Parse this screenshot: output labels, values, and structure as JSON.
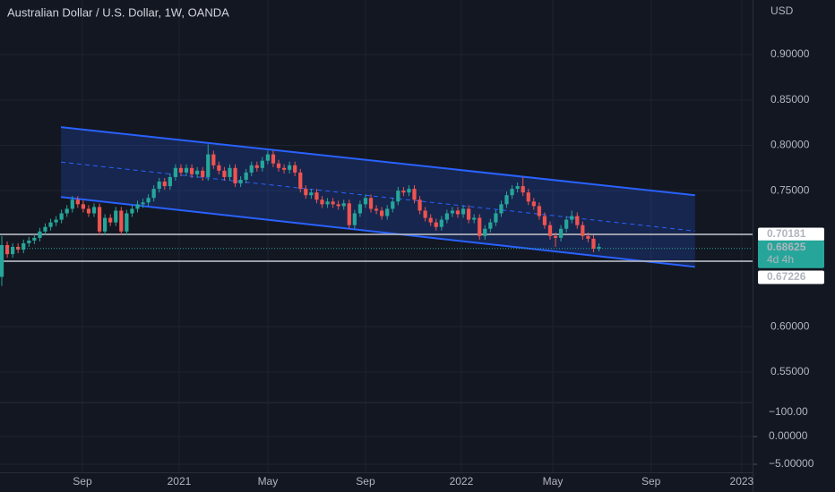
{
  "chart_data": {
    "type": "candlestick",
    "title": "Australian Dollar / U.S. Dollar, 1W, OANDA",
    "currency": "USD",
    "up_color": "#26a69a",
    "down_color": "#ef5350",
    "open": [
      0.655,
      0.69,
      0.68,
      0.688,
      0.685,
      0.692,
      0.695,
      0.698,
      0.705,
      0.71,
      0.715,
      0.718,
      0.725,
      0.73,
      0.74,
      0.735,
      0.73,
      0.725,
      0.732,
      0.705,
      0.72,
      0.715,
      0.728,
      0.705,
      0.725,
      0.73,
      0.735,
      0.737,
      0.742,
      0.752,
      0.76,
      0.755,
      0.765,
      0.775,
      0.77,
      0.775,
      0.768,
      0.772,
      0.765,
      0.79,
      0.778,
      0.772,
      0.765,
      0.775,
      0.758,
      0.762,
      0.77,
      0.778,
      0.775,
      0.783,
      0.79,
      0.78,
      0.775,
      0.773,
      0.778,
      0.77,
      0.752,
      0.745,
      0.748,
      0.74,
      0.735,
      0.738,
      0.735,
      0.733,
      0.736,
      0.712,
      0.725,
      0.735,
      0.742,
      0.73,
      0.728,
      0.722,
      0.73,
      0.738,
      0.75,
      0.748,
      0.752,
      0.74,
      0.728,
      0.72,
      0.715,
      0.71,
      0.718,
      0.725,
      0.728,
      0.724,
      0.73,
      0.718,
      0.72,
      0.7,
      0.708,
      0.715,
      0.725,
      0.735,
      0.745,
      0.752,
      0.755,
      0.748,
      0.738,
      0.733,
      0.722,
      0.712,
      0.7,
      0.698,
      0.708,
      0.718,
      0.722,
      0.712,
      0.7,
      0.697,
      0.686
    ],
    "high": [
      0.7,
      0.694,
      0.692,
      0.692,
      0.696,
      0.699,
      0.702,
      0.709,
      0.714,
      0.719,
      0.722,
      0.729,
      0.734,
      0.744,
      0.744,
      0.739,
      0.734,
      0.736,
      0.736,
      0.724,
      0.724,
      0.732,
      0.732,
      0.729,
      0.734,
      0.739,
      0.741,
      0.746,
      0.756,
      0.764,
      0.764,
      0.769,
      0.779,
      0.779,
      0.779,
      0.779,
      0.776,
      0.776,
      0.801,
      0.794,
      0.782,
      0.776,
      0.779,
      0.779,
      0.766,
      0.774,
      0.782,
      0.782,
      0.787,
      0.794,
      0.794,
      0.784,
      0.779,
      0.782,
      0.782,
      0.774,
      0.756,
      0.752,
      0.752,
      0.744,
      0.742,
      0.742,
      0.739,
      0.74,
      0.74,
      0.729,
      0.739,
      0.746,
      0.746,
      0.734,
      0.732,
      0.734,
      0.742,
      0.754,
      0.754,
      0.756,
      0.756,
      0.744,
      0.732,
      0.724,
      0.719,
      0.722,
      0.729,
      0.732,
      0.732,
      0.734,
      0.734,
      0.724,
      0.724,
      0.712,
      0.719,
      0.729,
      0.739,
      0.749,
      0.756,
      0.759,
      0.765,
      0.752,
      0.742,
      0.737,
      0.726,
      0.716,
      0.704,
      0.712,
      0.722,
      0.728,
      0.726,
      0.716,
      0.704,
      0.701,
      0.692
    ],
    "low": [
      0.645,
      0.676,
      0.676,
      0.681,
      0.681,
      0.688,
      0.691,
      0.694,
      0.701,
      0.706,
      0.711,
      0.714,
      0.721,
      0.726,
      0.731,
      0.726,
      0.721,
      0.721,
      0.701,
      0.701,
      0.711,
      0.711,
      0.701,
      0.701,
      0.721,
      0.726,
      0.731,
      0.733,
      0.738,
      0.748,
      0.751,
      0.751,
      0.761,
      0.766,
      0.766,
      0.764,
      0.764,
      0.761,
      0.761,
      0.774,
      0.768,
      0.761,
      0.761,
      0.754,
      0.754,
      0.758,
      0.766,
      0.771,
      0.771,
      0.779,
      0.776,
      0.771,
      0.769,
      0.769,
      0.766,
      0.748,
      0.741,
      0.741,
      0.736,
      0.731,
      0.731,
      0.731,
      0.729,
      0.729,
      0.708,
      0.708,
      0.721,
      0.731,
      0.726,
      0.724,
      0.718,
      0.718,
      0.726,
      0.734,
      0.744,
      0.744,
      0.736,
      0.724,
      0.716,
      0.711,
      0.706,
      0.706,
      0.714,
      0.721,
      0.72,
      0.72,
      0.714,
      0.714,
      0.696,
      0.696,
      0.704,
      0.711,
      0.721,
      0.731,
      0.741,
      0.748,
      0.744,
      0.734,
      0.729,
      0.718,
      0.708,
      0.696,
      0.688,
      0.694,
      0.704,
      0.714,
      0.708,
      0.696,
      0.693,
      0.682,
      0.683
    ],
    "close": [
      0.69,
      0.68,
      0.688,
      0.685,
      0.692,
      0.695,
      0.698,
      0.705,
      0.71,
      0.715,
      0.718,
      0.725,
      0.73,
      0.74,
      0.735,
      0.73,
      0.725,
      0.732,
      0.705,
      0.72,
      0.715,
      0.728,
      0.705,
      0.725,
      0.73,
      0.735,
      0.737,
      0.742,
      0.752,
      0.76,
      0.755,
      0.765,
      0.775,
      0.77,
      0.775,
      0.768,
      0.772,
      0.765,
      0.79,
      0.778,
      0.772,
      0.765,
      0.775,
      0.758,
      0.762,
      0.77,
      0.778,
      0.775,
      0.783,
      0.79,
      0.78,
      0.775,
      0.773,
      0.778,
      0.77,
      0.752,
      0.745,
      0.748,
      0.74,
      0.735,
      0.738,
      0.735,
      0.733,
      0.736,
      0.712,
      0.725,
      0.735,
      0.742,
      0.73,
      0.728,
      0.722,
      0.73,
      0.738,
      0.75,
      0.748,
      0.752,
      0.74,
      0.728,
      0.72,
      0.715,
      0.71,
      0.718,
      0.725,
      0.728,
      0.724,
      0.73,
      0.718,
      0.72,
      0.7,
      0.708,
      0.715,
      0.725,
      0.735,
      0.745,
      0.752,
      0.755,
      0.748,
      0.738,
      0.733,
      0.722,
      0.712,
      0.7,
      0.698,
      0.708,
      0.718,
      0.722,
      0.712,
      0.7,
      0.697,
      0.686,
      0.688
    ],
    "xlim": [
      -0.33,
      138.3
    ],
    "xticks": [
      {
        "value": 14.85,
        "label": "Sep"
      },
      {
        "value": 32.67,
        "label": "2021"
      },
      {
        "value": 49.0,
        "label": "May"
      },
      {
        "value": 67.0,
        "label": "Sep"
      },
      {
        "value": 84.65,
        "label": "2022"
      },
      {
        "value": 101.5,
        "label": "May"
      },
      {
        "value": 119.6,
        "label": "Sep"
      },
      {
        "value": 136.3,
        "label": "2023"
      }
    ],
    "ylim": [
      0.5164,
      0.9602
    ],
    "yticks": [
      {
        "value": 0.9,
        "label": "0.90000"
      },
      {
        "value": 0.85,
        "label": "0.85000"
      },
      {
        "value": 0.8,
        "label": "0.80000"
      },
      {
        "value": 0.75,
        "label": "0.75000"
      },
      {
        "value": 0.6,
        "label": "0.60000"
      },
      {
        "value": 0.55,
        "label": "0.55000"
      }
    ],
    "channel": {
      "x": [
        10.9,
        127.7
      ],
      "upper": [
        0.82,
        0.745
      ],
      "lower": [
        0.743,
        0.666
      ],
      "color": "#2962ff"
    },
    "levels": [
      0.70181,
      0.67226
    ],
    "last_price": 0.68625,
    "countdown": "4d 4h",
    "indicator_pane": {
      "ylim": [
        -6.45,
        6.13
      ],
      "yticks": [
        {
          "value": 0,
          "label": "0.00000"
        },
        {
          "value": -5,
          "label": "−5.00000"
        }
      ],
      "overlay_label": {
        "value": -100,
        "label": "−100.00"
      }
    }
  }
}
